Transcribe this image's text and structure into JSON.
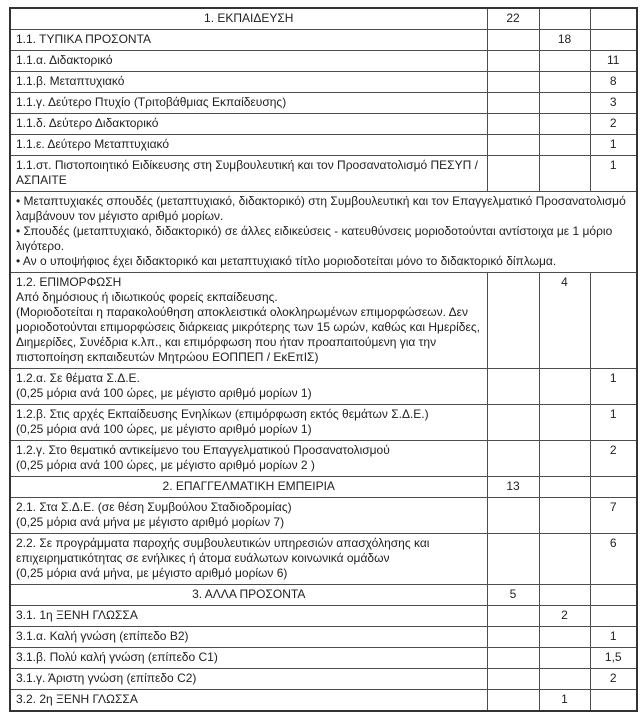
{
  "colors": {
    "background": "#ffffff",
    "text": "#1f1f1f",
    "inner_border": "#4d4d4d",
    "outer_border": "#333333"
  },
  "table": {
    "description": "Greek points/criteria scoring table with three unlabeled points columns (section total, subsection total, item points)",
    "rows": [
      {
        "type": "section",
        "lines": [
          "1. ΕΚΠΑΙΔΕΥΣΗ"
        ],
        "c1": "22",
        "c2": "",
        "c3": ""
      },
      {
        "type": "sub",
        "lines": [
          "1.1. ΤΥΠΙΚΑ ΠΡΟΣΟΝΤΑ"
        ],
        "c1": "",
        "c2": "18",
        "c3": ""
      },
      {
        "type": "item",
        "lines": [
          "1.1.α. Διδακτορικό"
        ],
        "c1": "",
        "c2": "",
        "c3": "11"
      },
      {
        "type": "item",
        "lines": [
          "1.1.β. Μεταπτυχιακό"
        ],
        "c1": "",
        "c2": "",
        "c3": "8"
      },
      {
        "type": "item",
        "lines": [
          "1.1.γ. Δεύτερο Πτυχίο (Τριτοβάθμιας Εκπαίδευσης)"
        ],
        "c1": "",
        "c2": "",
        "c3": "3"
      },
      {
        "type": "item",
        "lines": [
          "1.1.δ. Δεύτερο Διδακτορικό"
        ],
        "c1": "",
        "c2": "",
        "c3": "2"
      },
      {
        "type": "item",
        "lines": [
          "1.1.ε. Δεύτερο Μεταπτυχιακό"
        ],
        "c1": "",
        "c2": "",
        "c3": "1"
      },
      {
        "type": "item",
        "lines": [
          "1.1.στ. Πιστοποιητικό Ειδίκευσης στη Συμβουλευτική και τον Προσανατολισμό ΠΕΣΥΠ / ΑΣΠΑΙΤΕ"
        ],
        "c1": "",
        "c2": "",
        "c3": "1"
      },
      {
        "type": "note",
        "lines": [
          "• Μεταπτυχιακές σπουδές (μεταπτυχιακό, διδακτορικό) στη Συμβουλευτική και τον Επαγγελματικό Προσανατολισμό λαμβάνουν τον μέγιστο αριθμό μορίων.",
          "• Σπουδές (μεταπτυχιακό, διδακτορικό) σε άλλες ειδικεύσεις - κατευθύνσεις μοριοδοτούνται αντίστοιχα με 1 μόριο λιγότερο.",
          "• Αν ο υποψήφιος έχει διδακτορικό και μεταπτυχιακό τίτλο μοριοδοτείται μόνο το διδακτορικό δίπλωμα."
        ],
        "c1": "",
        "c2": "",
        "c3": ""
      },
      {
        "type": "sub",
        "lines": [
          "1.2. ΕΠΙΜΟΡΦΩΣΗ",
          "Από δημόσιους ή ιδιωτικούς φορείς εκπαίδευσης.",
          "(Μοριοδοτείται η παρακολούθηση αποκλειστικά ολοκληρωμένων επιμορφώσεων. Δεν μοριοδοτούνται επιμορφώσεις διάρκειας μικρότερης των 15 ωρών, καθώς και Ημερίδες, Διημερίδες, Συνέδρια κ.λπ., και επιμόρφωση που ήταν προαπαιτούμενη για την πιστοποίηση εκπαιδευτών Μητρώου ΕΟΠΠΕΠ / ΕκΕπΙΣ)"
        ],
        "c1": "",
        "c2": "4",
        "c3": ""
      },
      {
        "type": "item",
        "lines": [
          "1.2.α. Σε θέματα Σ.Δ.Ε.",
          "(0,25 μόρια ανά 100 ώρες, με μέγιστο αριθμό μορίων 1)"
        ],
        "c1": "",
        "c2": "",
        "c3": "1"
      },
      {
        "type": "item",
        "lines": [
          "1.2.β. Στις αρχές Εκπαίδευσης Ενηλίκων (επιμόρφωση εκτός θεμάτων Σ.Δ.Ε.)",
          "(0,25 μόρια ανά 100 ώρες, με μέγιστο αριθμό μορίων 1)"
        ],
        "c1": "",
        "c2": "",
        "c3": "1"
      },
      {
        "type": "item",
        "lines": [
          "1.2.γ. Στο θεματικό αντικείμενο του Επαγγελματικού Προσανατολισμού",
          "(0,25 μόρια ανά 100 ώρες, με μέγιστο αριθμό μορίων 2 )"
        ],
        "c1": "",
        "c2": "",
        "c3": "2"
      },
      {
        "type": "section",
        "lines": [
          "2. ΕΠΑΓΓΕΛΜΑΤΙΚΗ ΕΜΠΕΙΡΙΑ"
        ],
        "c1": "13",
        "c2": "",
        "c3": ""
      },
      {
        "type": "item",
        "lines": [
          "2.1. Στα Σ.Δ.Ε. (σε θέση Συμβούλου Σταδιοδρομίας)",
          "(0,25 μόρια ανά μήνα με μέγιστο αριθμό μορίων 7)"
        ],
        "c1": "",
        "c2": "",
        "c3": "7"
      },
      {
        "type": "item",
        "lines": [
          "2.2. Σε προγράμματα παροχής συμβουλευτικών υπηρεσιών απασχόλησης και επιχειρηματικότητας σε ενήλικες ή άτομα ευάλωτων κοινωνικά ομάδων",
          "(0,25 μόρια ανά μήνα, με μέγιστο αριθμό μορίων 6)"
        ],
        "c1": "",
        "c2": "",
        "c3": "6"
      },
      {
        "type": "section",
        "lines": [
          "3. ΑΛΛΑ ΠΡΟΣΟΝΤΑ"
        ],
        "c1": "5",
        "c2": "",
        "c3": ""
      },
      {
        "type": "sub",
        "lines": [
          "3.1. 1η ΞΕΝΗ ΓΛΩΣΣΑ"
        ],
        "c1": "",
        "c2": "2",
        "c3": ""
      },
      {
        "type": "item",
        "lines": [
          "3.1.α. Καλή γνώση (επίπεδο Β2)"
        ],
        "c1": "",
        "c2": "",
        "c3": "1"
      },
      {
        "type": "item",
        "lines": [
          "3.1.β. Πολύ καλή γνώση (επίπεδο C1)"
        ],
        "c1": "",
        "c2": "",
        "c3": "1,5"
      },
      {
        "type": "item",
        "lines": [
          "3.1.γ. Άριστη γνώση (επίπεδο C2)"
        ],
        "c1": "",
        "c2": "",
        "c3": "2"
      },
      {
        "type": "sub",
        "lines": [
          "3.2. 2η ΞΕΝΗ ΓΛΩΣΣΑ"
        ],
        "c1": "",
        "c2": "1",
        "c3": ""
      }
    ]
  }
}
